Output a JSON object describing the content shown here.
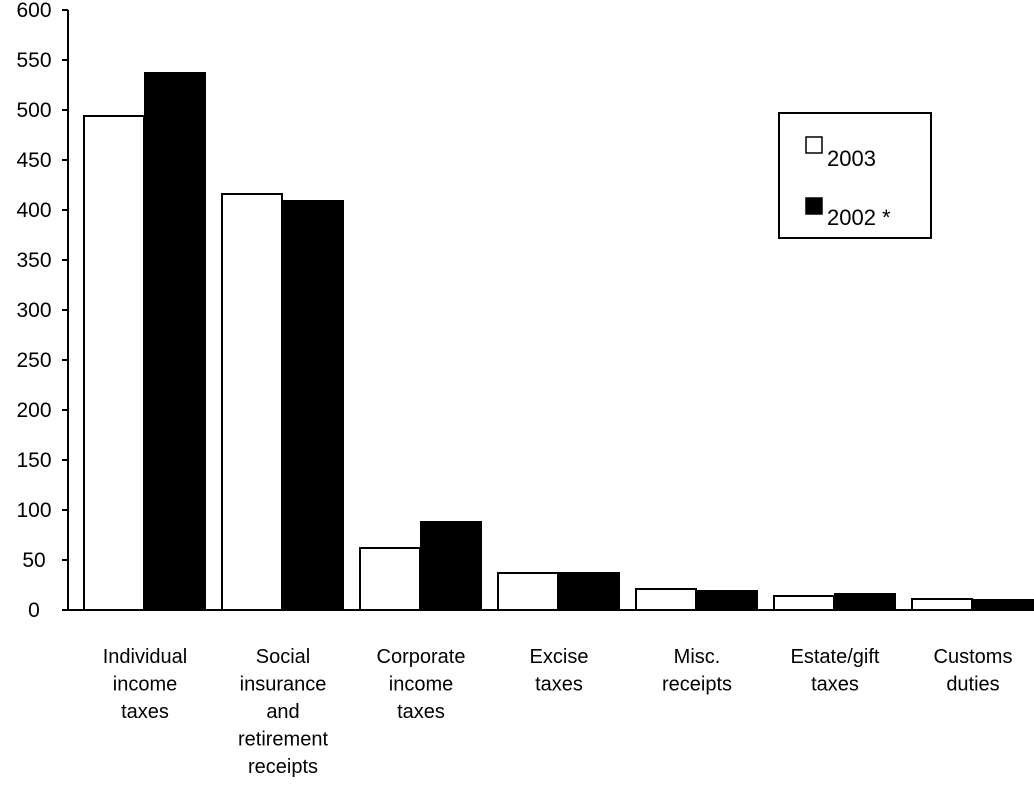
{
  "chart_data": {
    "type": "bar",
    "categories": [
      [
        "Individual",
        "income",
        "taxes"
      ],
      [
        "Social",
        "insurance",
        "and",
        "retirement",
        "receipts"
      ],
      [
        "Corporate",
        "income",
        "taxes"
      ],
      [
        "Excise",
        "taxes"
      ],
      [
        "Misc.",
        "receipts"
      ],
      [
        "Estate/gift",
        "taxes"
      ],
      [
        "Customs",
        "duties"
      ]
    ],
    "series": [
      {
        "name": "2003",
        "color": "#ffffff",
        "values": [
          494,
          416,
          62,
          37,
          21,
          14,
          11
        ]
      },
      {
        "name": "2002 *",
        "color": "#000000",
        "values": [
          537,
          409,
          88,
          37,
          19,
          16,
          10
        ]
      }
    ],
    "y_ticks": [
      0,
      50,
      100,
      150,
      200,
      250,
      300,
      350,
      400,
      450,
      500,
      550,
      600
    ],
    "ylim": [
      0,
      600
    ],
    "grid": false,
    "legend_position": "top-right",
    "title": "",
    "xlabel": "",
    "ylabel": ""
  }
}
